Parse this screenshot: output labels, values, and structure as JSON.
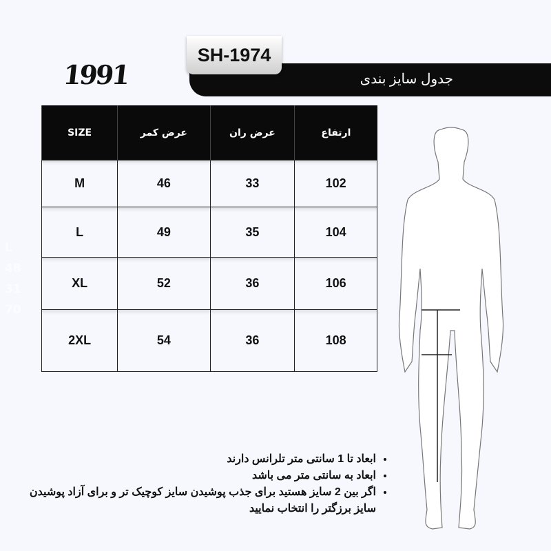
{
  "brand": {
    "logo": "1991",
    "model": "SH-1974",
    "title": "جدول سایز بندی"
  },
  "table": {
    "headers": [
      "SIZE",
      "عرض کمر",
      "عرض ران",
      "ارتفاع"
    ],
    "rows": [
      [
        "M",
        "46",
        "33",
        "102"
      ],
      [
        "L",
        "49",
        "35",
        "104"
      ],
      [
        "XL",
        "52",
        "36",
        "106"
      ],
      [
        "2XL",
        "54",
        "36",
        "108"
      ]
    ]
  },
  "faint_values": [
    "L",
    "48",
    "31",
    "70"
  ],
  "notes": [
    "ابعاد تا 1 سانتی متر تلرانس دارند",
    "ابعاد به سانتی متر می باشد",
    "اگر بین 2 سایز هستید برای جذب پوشیدن سایز کوچیک تر و برای آزاد پوشیدن سایز برزگتر را انتخاب نمایید"
  ]
}
